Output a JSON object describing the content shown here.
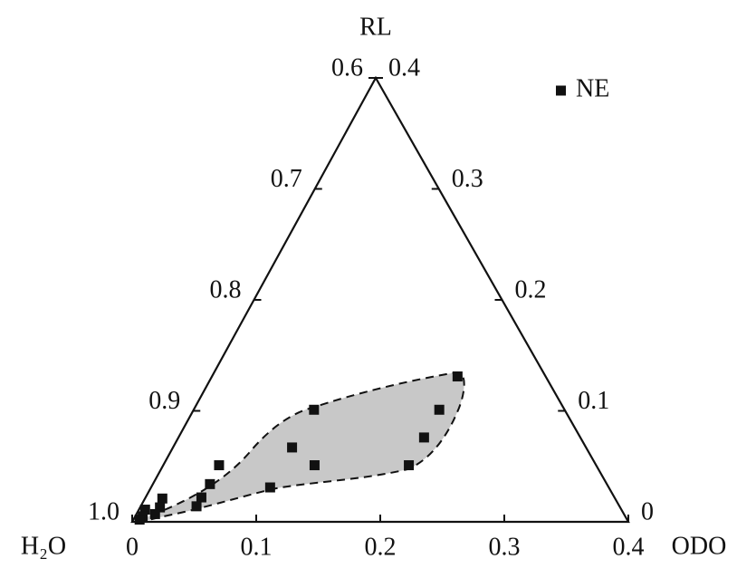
{
  "chart_data": {
    "type": "ternary",
    "bottom_axis": {
      "label": "ODO",
      "lim": [
        0,
        0.4
      ],
      "ticks": [
        0,
        0.1,
        0.2,
        0.3,
        0.4
      ]
    },
    "left_axis": {
      "label": "H₂O",
      "lim": [
        0.6,
        1
      ],
      "ticks": [
        {
          "value": 1,
          "label": "1.0"
        },
        0.9,
        0.8,
        0.7,
        0.6
      ]
    },
    "right_axis": {
      "label": "RL",
      "lim": [
        0,
        0.4
      ],
      "ticks": [
        0,
        0.1,
        0.2,
        0.3,
        0.4
      ]
    },
    "legend": "top-right",
    "series": [
      {
        "name": "NE",
        "color": "#111111",
        "odo": [
          0.198,
          0.198,
          0.198,
          0.198,
          0.097,
          0.096,
          0.122,
          0.096,
          0.045,
          0.046,
          0.045,
          0.045,
          0.014,
          0.016,
          0.015,
          0.005,
          0.006,
          0.005
        ],
        "rl": [
          0.131,
          0.101,
          0.076,
          0.051,
          0.101,
          0.067,
          0.051,
          0.031,
          0.051,
          0.034,
          0.022,
          0.014,
          0.021,
          0.013,
          0.007,
          0.011,
          0.005,
          0.002
        ]
      }
    ]
  }
}
